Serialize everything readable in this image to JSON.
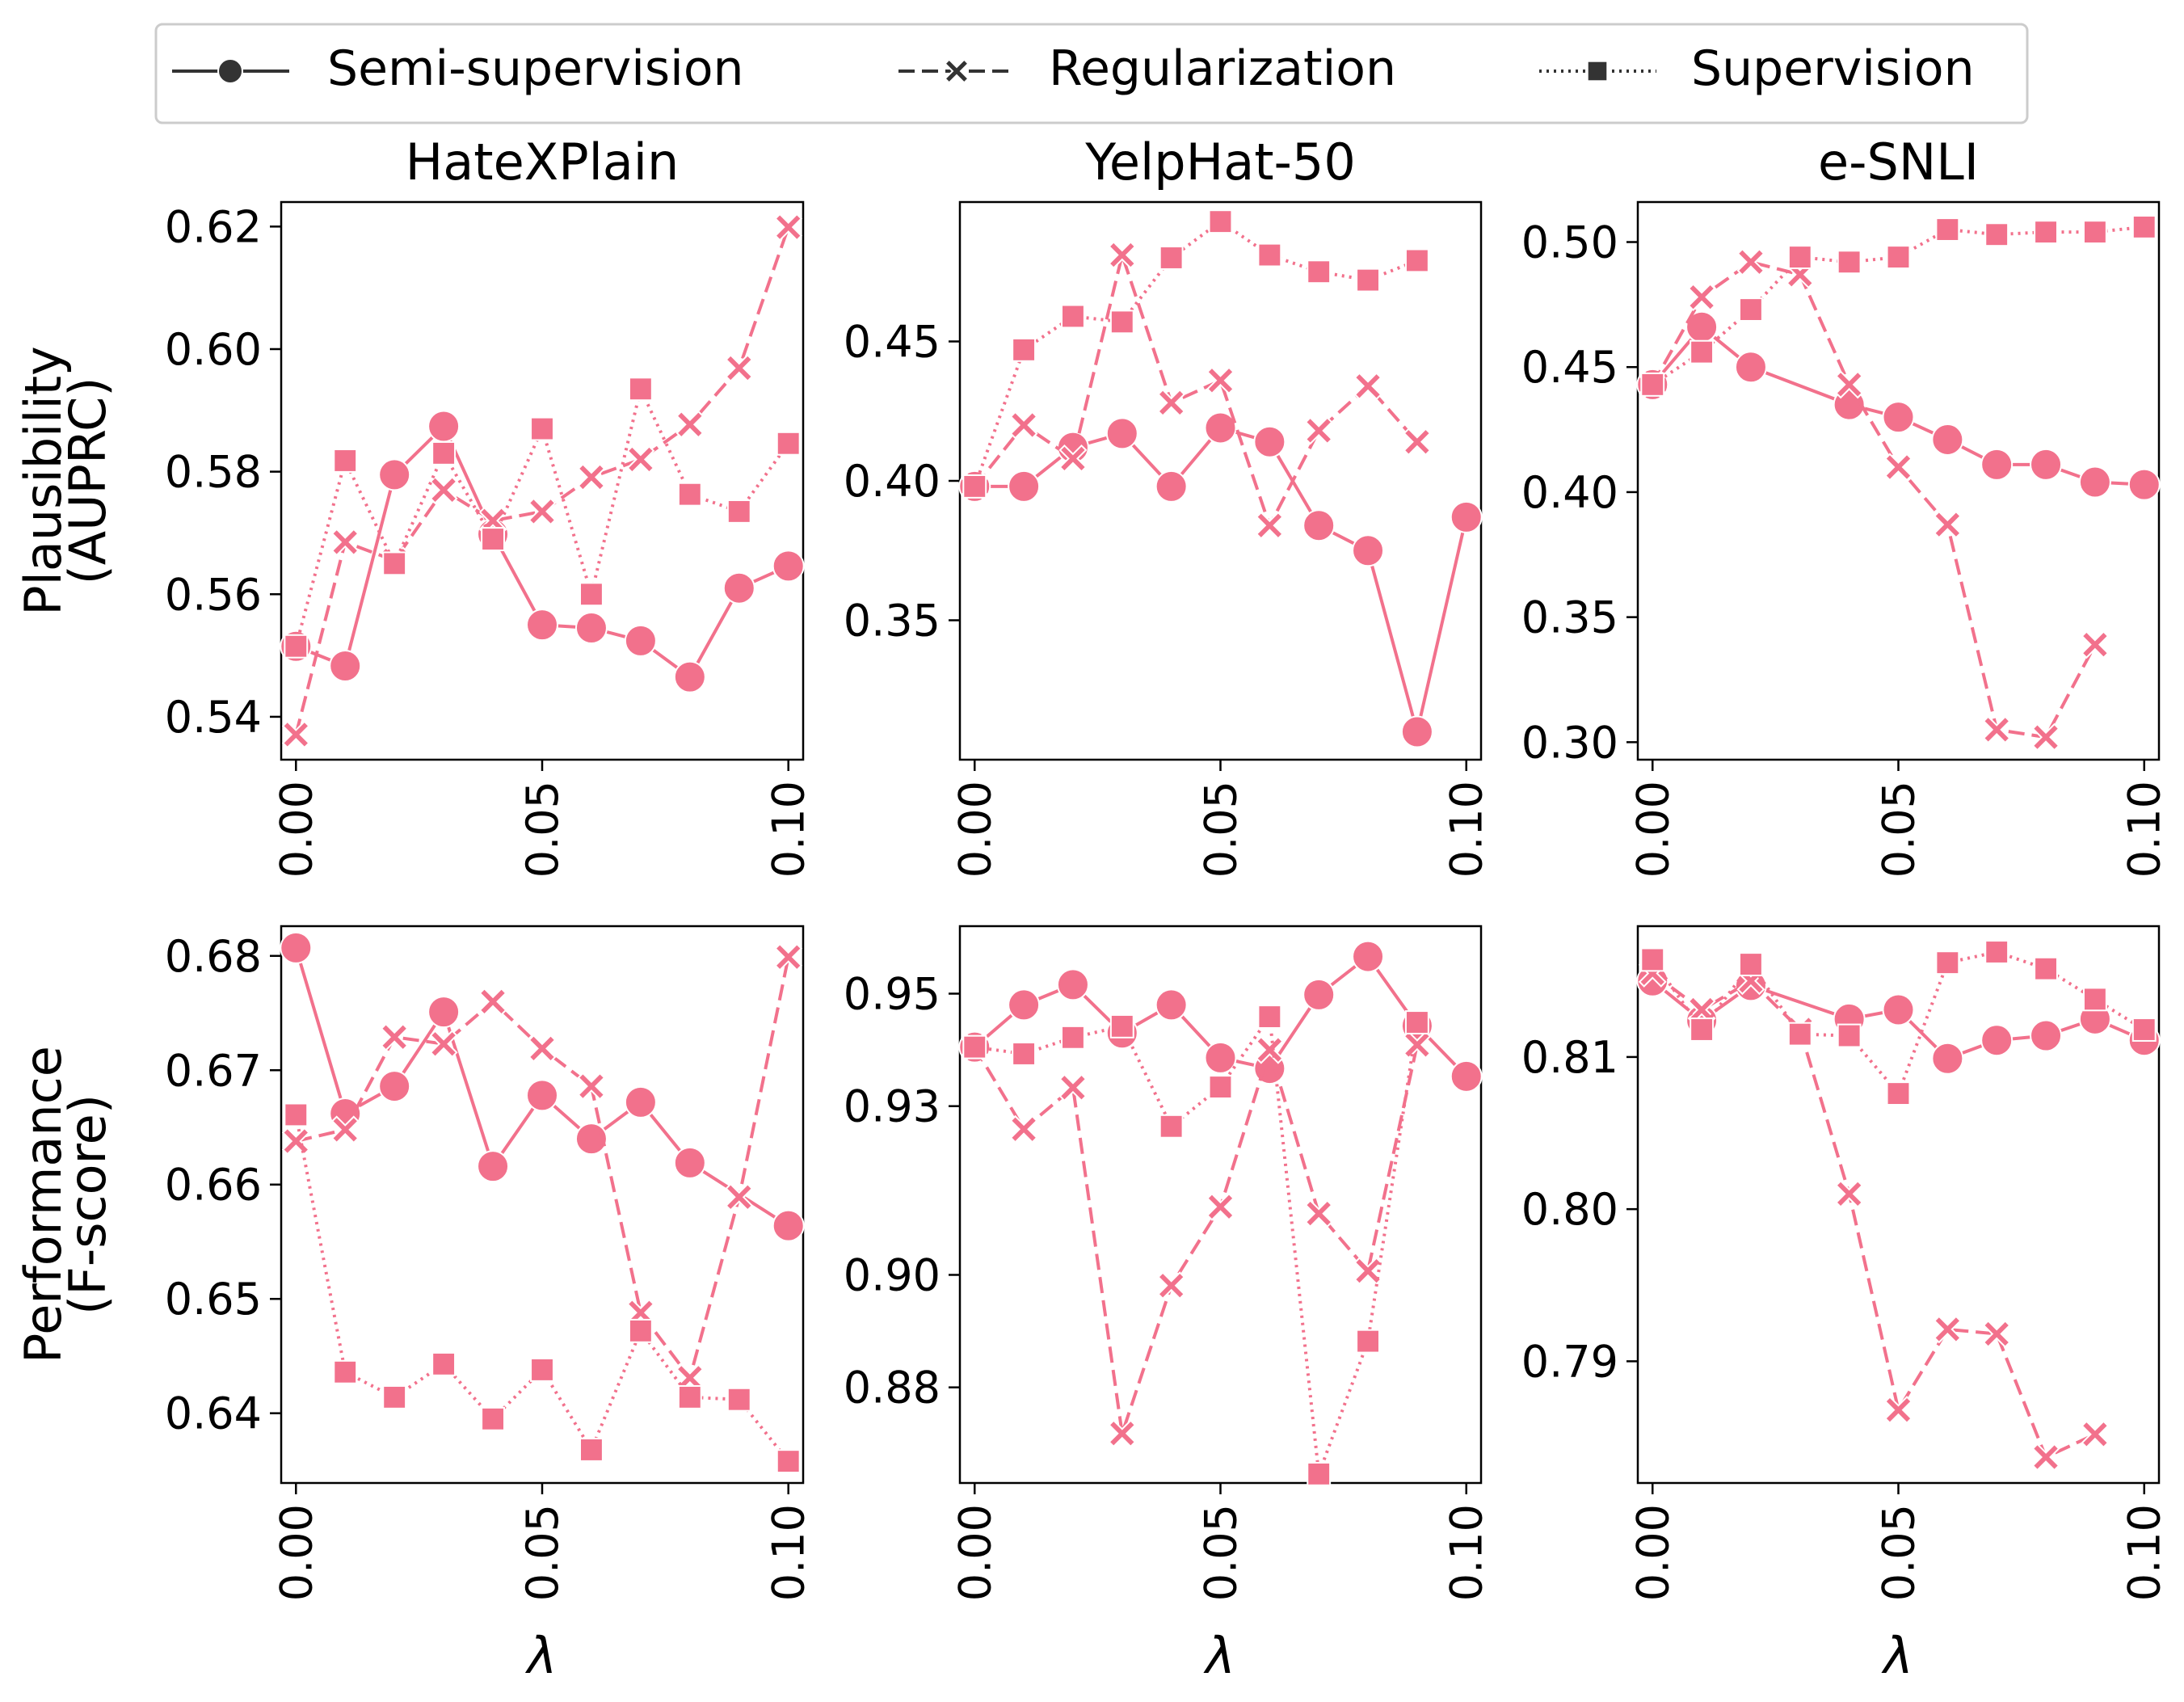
{
  "colors": {
    "series": "#f2718c",
    "legend_line": "#333333",
    "axes": "#000000"
  },
  "chart_data": {
    "type": "line",
    "layout": "2x3 grid",
    "xlabel": "λ",
    "x": [
      0.0,
      0.01,
      0.02,
      0.03,
      0.04,
      0.05,
      0.06,
      0.07,
      0.08,
      0.09,
      0.1
    ],
    "xticks": [
      "0.00",
      "0.05",
      "0.10"
    ],
    "legend": {
      "placement": "top-center",
      "entries": [
        {
          "name": "Semi-supervision",
          "linestyle": "solid",
          "marker": "circle"
        },
        {
          "name": "Regularization",
          "linestyle": "dashed",
          "marker": "x"
        },
        {
          "name": "Supervision",
          "linestyle": "dotted",
          "marker": "square"
        }
      ]
    },
    "columns": [
      "HateXPlain",
      "YelpHat-50",
      "e-SNLI"
    ],
    "rows": [
      {
        "ylabel": [
          "Plausibility",
          "(AUPRC)"
        ]
      },
      {
        "ylabel": [
          "Performance",
          "(F-score)"
        ]
      }
    ],
    "panels": [
      {
        "title": "HateXPlain",
        "row": 0,
        "col": 0,
        "ylim": [
          0.533,
          0.624
        ],
        "yticks": [
          "0.54",
          "0.56",
          "0.58",
          "0.60",
          "0.62"
        ],
        "series": [
          {
            "name": "Semi-supervision",
            "values": [
              0.5515,
              0.5483,
              0.5795,
              0.5874,
              0.5698,
              0.555,
              0.5545,
              0.5524,
              0.5465,
              0.561,
              0.5646
            ]
          },
          {
            "name": "Regularization",
            "values": [
              0.5371,
              0.5685,
              0.5655,
              0.577,
              0.572,
              0.5735,
              0.5791,
              0.582,
              0.5877,
              0.5969,
              0.6199
            ]
          },
          {
            "name": "Supervision",
            "values": [
              0.5515,
              0.5818,
              0.565,
              0.583,
              0.569,
              0.587,
              0.56,
              0.5935,
              0.5763,
              0.5735,
              0.5846
            ]
          }
        ]
      },
      {
        "title": "YelpHat-50",
        "row": 0,
        "col": 1,
        "ylim": [
          0.3,
          0.5
        ],
        "yticks": [
          "0.35",
          "0.40",
          "0.45"
        ],
        "series": [
          {
            "name": "Semi-supervision",
            "values": [
              0.398,
              0.398,
              0.412,
              0.417,
              0.398,
              0.419,
              0.414,
              0.384,
              0.375,
              0.31,
              0.387
            ]
          },
          {
            "name": "Regularization",
            "values": [
              0.398,
              0.42,
              0.408,
              0.481,
              0.428,
              0.436,
              0.384,
              0.418,
              0.434,
              0.414,
              null
            ]
          },
          {
            "name": "Supervision",
            "values": [
              0.398,
              0.447,
              0.459,
              0.457,
              0.48,
              0.493,
              0.481,
              0.475,
              0.472,
              0.479,
              null
            ]
          }
        ]
      },
      {
        "title": "e-SNLI",
        "row": 0,
        "col": 2,
        "ylim": [
          0.293,
          0.516
        ],
        "yticks": [
          "0.30",
          "0.35",
          "0.40",
          "0.45",
          "0.50"
        ],
        "series": [
          {
            "name": "Semi-supervision",
            "values": [
              0.443,
              0.466,
              0.45,
              null,
              0.435,
              0.43,
              0.421,
              0.411,
              0.411,
              0.404,
              0.403
            ]
          },
          {
            "name": "Regularization",
            "values": [
              0.443,
              0.478,
              0.492,
              0.487,
              0.443,
              0.41,
              0.387,
              0.305,
              0.302,
              0.339,
              null
            ]
          },
          {
            "name": "Supervision",
            "values": [
              0.443,
              0.456,
              0.473,
              0.494,
              0.492,
              0.494,
              0.505,
              0.503,
              0.504,
              0.504,
              0.506
            ]
          }
        ]
      },
      {
        "title": "HateXPlain",
        "row": 1,
        "col": 0,
        "ylim": [
          0.6339,
          0.6826
        ],
        "yticks": [
          "0.64",
          "0.65",
          "0.66",
          "0.67",
          "0.68"
        ],
        "series": [
          {
            "name": "Semi-supervision",
            "values": [
              0.6807,
              0.6662,
              0.6686,
              0.6751,
              0.6616,
              0.6678,
              0.664,
              0.6672,
              0.6619,
              null,
              0.6564
            ]
          },
          {
            "name": "Regularization",
            "values": [
              0.6638,
              0.6648,
              0.6729,
              0.6723,
              0.676,
              0.6719,
              0.6686,
              0.6488,
              0.6431,
              0.6589,
              0.6799
            ]
          },
          {
            "name": "Supervision",
            "values": [
              0.6661,
              0.6436,
              0.6414,
              0.6443,
              0.6395,
              0.6438,
              0.6368,
              0.6472,
              0.6414,
              0.6412,
              0.6358
            ]
          }
        ]
      },
      {
        "title": "YelpHat-50",
        "row": 1,
        "col": 1,
        "ylim": [
          0.863,
          0.962
        ],
        "yticks": [
          "0.88",
          "0.90",
          "0.93",
          "0.95"
        ],
        "series": [
          {
            "name": "Semi-supervision",
            "values": [
              0.9405,
              0.948,
              0.9516,
              0.943,
              0.948,
              0.9386,
              0.9367,
              0.9498,
              0.9566,
              0.9443,
              0.9353
            ]
          },
          {
            "name": "Regularization",
            "values": [
              0.9405,
              0.9259,
              0.9333,
              0.8718,
              0.8981,
              0.9121,
              0.94,
              0.9109,
              0.9007,
              0.9409,
              null
            ]
          },
          {
            "name": "Supervision",
            "values": [
              0.9405,
              0.9393,
              0.9422,
              0.9442,
              0.9264,
              0.9334,
              0.9459,
              0.8646,
              0.8882,
              0.9449,
              null
            ]
          }
        ]
      },
      {
        "title": "e-SNLI",
        "row": 1,
        "col": 2,
        "ylim": [
          0.782,
          0.8186
        ],
        "yticks": [
          "0.79",
          "0.80",
          "0.81"
        ],
        "series": [
          {
            "name": "Semi-supervision",
            "values": [
              0.815,
              0.8124,
              0.8147,
              null,
              0.8125,
              0.8131,
              0.8099,
              0.8111,
              0.8114,
              0.8125,
              0.8111
            ]
          },
          {
            "name": "Regularization",
            "values": [
              0.8155,
              0.8131,
              0.815,
              0.8118,
              0.801,
              0.7868,
              0.7921,
              0.7918,
              0.7837,
              0.7852,
              null
            ]
          },
          {
            "name": "Supervision",
            "values": [
              0.8164,
              0.8118,
              0.8161,
              0.8115,
              0.8114,
              0.8076,
              0.8162,
              0.8169,
              0.8158,
              0.8138,
              0.8118
            ]
          }
        ]
      }
    ]
  }
}
